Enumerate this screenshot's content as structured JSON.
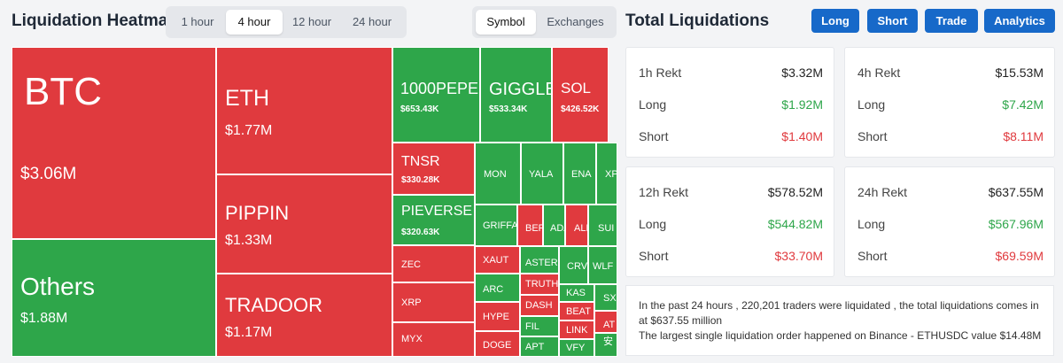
{
  "header": {
    "title": "Liquidation Heatmap",
    "time_tabs": [
      "1 hour",
      "4 hour",
      "12 hour",
      "24 hour"
    ],
    "active_time_tab": "4 hour",
    "view_tabs": [
      "Symbol",
      "Exchanges"
    ],
    "active_view_tab": "Symbol",
    "total_title": "Total Liquidations",
    "buttons": [
      "Long",
      "Short",
      "Trade",
      "Analytics"
    ]
  },
  "colors": {
    "accent": "#1769c9",
    "red": "#e03a3e",
    "green": "#2ea64a"
  },
  "heatmap": [
    {
      "name": "BTC",
      "value": "$3.06M",
      "color": "red"
    },
    {
      "name": "Others",
      "value": "$1.88M",
      "color": "green"
    },
    {
      "name": "ETH",
      "value": "$1.77M",
      "color": "red"
    },
    {
      "name": "PIPPIN",
      "value": "$1.33M",
      "color": "red"
    },
    {
      "name": "TRADOOR",
      "value": "$1.17M",
      "color": "red"
    },
    {
      "name": "1000PEPE",
      "value": "$653.43K",
      "color": "green"
    },
    {
      "name": "GIGGLE",
      "value": "$533.34K",
      "color": "green"
    },
    {
      "name": "SOL",
      "value": "$426.52K",
      "color": "red"
    },
    {
      "name": "TNSR",
      "value": "$330.28K",
      "color": "red"
    },
    {
      "name": "PIEVERSE",
      "value": "$320.63K",
      "color": "green"
    },
    {
      "name": "ZEC",
      "value": "",
      "color": "red"
    },
    {
      "name": "XRP",
      "value": "",
      "color": "red"
    },
    {
      "name": "MYX",
      "value": "",
      "color": "red"
    },
    {
      "name": "MON",
      "value": "",
      "color": "green"
    },
    {
      "name": "YALA",
      "value": "",
      "color": "green"
    },
    {
      "name": "ENA",
      "value": "",
      "color": "green"
    },
    {
      "name": "XP",
      "value": "",
      "color": "green"
    },
    {
      "name": "GRIFFAI",
      "value": "",
      "color": "green"
    },
    {
      "name": "BER",
      "value": "",
      "color": "red"
    },
    {
      "name": "ADA",
      "value": "",
      "color": "green"
    },
    {
      "name": "ALL",
      "value": "",
      "color": "red"
    },
    {
      "name": "SUI",
      "value": "",
      "color": "green"
    },
    {
      "name": "XAUT",
      "value": "",
      "color": "red"
    },
    {
      "name": "ARC",
      "value": "",
      "color": "green"
    },
    {
      "name": "HYPE",
      "value": "",
      "color": "red"
    },
    {
      "name": "DOGE",
      "value": "",
      "color": "red"
    },
    {
      "name": "ASTER",
      "value": "",
      "color": "green"
    },
    {
      "name": "TRUTH",
      "value": "",
      "color": "red"
    },
    {
      "name": "DASH",
      "value": "",
      "color": "red"
    },
    {
      "name": "FIL",
      "value": "",
      "color": "green"
    },
    {
      "name": "APT",
      "value": "",
      "color": "green"
    },
    {
      "name": "CRV",
      "value": "",
      "color": "green"
    },
    {
      "name": "WLF",
      "value": "",
      "color": "green"
    },
    {
      "name": "KAS",
      "value": "",
      "color": "green"
    },
    {
      "name": "BEAT",
      "value": "",
      "color": "red"
    },
    {
      "name": "LINK",
      "value": "",
      "color": "red"
    },
    {
      "name": "VFY",
      "value": "",
      "color": "green"
    },
    {
      "name": "SX",
      "value": "",
      "color": "green"
    },
    {
      "name": "AT",
      "value": "",
      "color": "red"
    },
    {
      "name": "安",
      "value": "",
      "color": "green"
    }
  ],
  "rekt_cards": [
    {
      "title": "1h Rekt",
      "total": "$3.32M",
      "long_label": "Long",
      "long": "$1.92M",
      "short_label": "Short",
      "short": "$1.40M"
    },
    {
      "title": "4h Rekt",
      "total": "$15.53M",
      "long_label": "Long",
      "long": "$7.42M",
      "short_label": "Short",
      "short": "$8.11M"
    },
    {
      "title": "12h Rekt",
      "total": "$578.52M",
      "long_label": "Long",
      "long": "$544.82M",
      "short_label": "Short",
      "short": "$33.70M"
    },
    {
      "title": "24h Rekt",
      "total": "$637.55M",
      "long_label": "Long",
      "long": "$567.96M",
      "short_label": "Short",
      "short": "$69.59M"
    }
  ],
  "summary": {
    "line1": "In the past 24 hours , 220,201 traders were liquidated , the total liquidations comes in at $637.55 million",
    "line2": "The largest single liquidation order happened on Binance - ETHUSDC value $14.48M"
  }
}
